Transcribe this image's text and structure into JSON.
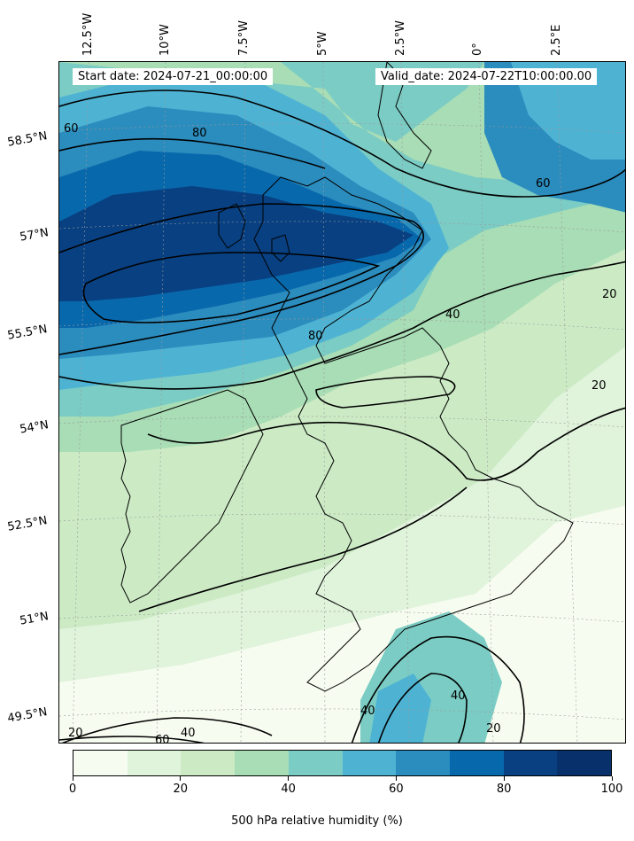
{
  "header": {
    "start_date": "Start date: 2024-07-21_00:00:00",
    "valid_date": "Valid_date: 2024-07-22T10:00:00.00"
  },
  "longitude_labels": [
    "12.5°W",
    "10°W",
    "7.5°W",
    "5°W",
    "2.5°W",
    "0°",
    "2.5°E"
  ],
  "latitude_labels": [
    "58.5°N",
    "57°N",
    "55.5°N",
    "54°N",
    "52.5°N",
    "51°N",
    "49.5°N"
  ],
  "contour_labels": [
    "60",
    "80",
    "60",
    "40",
    "20",
    "20",
    "80",
    "40",
    "40",
    "20",
    "20",
    "60",
    "40"
  ],
  "colorbar": {
    "ticks": [
      "0",
      "20",
      "40",
      "60",
      "80",
      "100"
    ],
    "label": "500 hPa relative humidity (%)",
    "colors": [
      "#f7fcf0",
      "#e0f3db",
      "#ccebc5",
      "#a8ddb5",
      "#7bccc4",
      "#4eb3d3",
      "#2b8cbe",
      "#0868ac",
      "#084081",
      "#08306b"
    ]
  },
  "chart_data": {
    "type": "heatmap",
    "variable": "500 hPa relative humidity",
    "unit": "%",
    "levels": [
      0,
      10,
      20,
      30,
      40,
      50,
      60,
      70,
      80,
      90,
      100
    ],
    "contour_levels": [
      20,
      40,
      60,
      80
    ],
    "longitude_ticks": [
      -12.5,
      -10,
      -7.5,
      -5,
      -2.5,
      0,
      2.5
    ],
    "latitude_ticks": [
      58.5,
      57,
      55.5,
      54,
      52.5,
      51,
      49.5
    ],
    "grid": true
  }
}
